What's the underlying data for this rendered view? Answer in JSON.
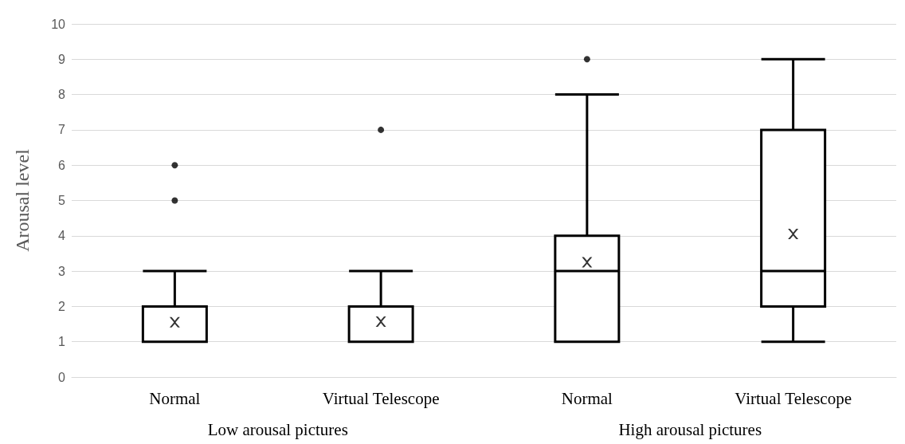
{
  "chart_data": {
    "type": "box",
    "ylabel": "Arousal level",
    "categories": [
      "Normal",
      "Virtual Telescope",
      "Normal",
      "Virtual Telescope"
    ],
    "boxes": [
      {
        "low": 1,
        "q1": 1,
        "median": 1,
        "q3": 2,
        "high": 3,
        "mean": 1.55,
        "outliers": [
          5,
          6
        ]
      },
      {
        "low": 1,
        "q1": 1,
        "median": 1,
        "q3": 2,
        "high": 3,
        "mean": 1.57,
        "outliers": [
          7
        ]
      },
      {
        "low": 1,
        "q1": 1,
        "median": 3,
        "q3": 4,
        "high": 8,
        "mean": 3.25,
        "outliers": [
          9
        ]
      },
      {
        "low": 1,
        "q1": 2,
        "median": 3,
        "q3": 7,
        "high": 9,
        "mean": 4.05
      }
    ],
    "color": "#000000",
    "annotations": [
      "Low arousal pictures",
      "High arousal pictures"
    ],
    "ylim": [
      0,
      10
    ],
    "yticks": [
      0,
      1,
      2,
      3,
      4,
      5,
      6,
      7,
      8,
      9,
      10
    ],
    "grid": "y"
  }
}
